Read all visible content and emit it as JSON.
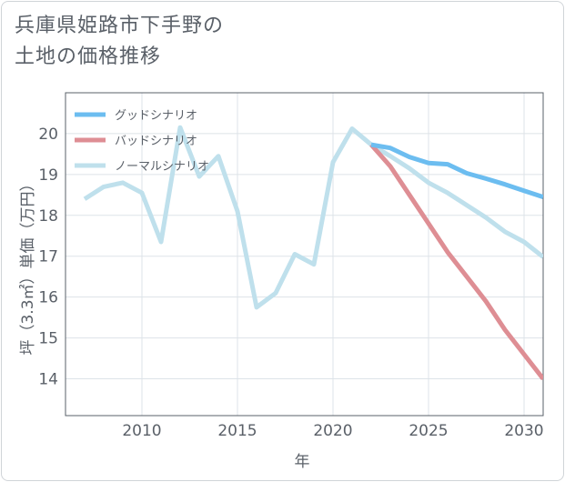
{
  "title": {
    "line1": "兵庫県姫路市下手野の",
    "line2": "土地の価格推移"
  },
  "chart_data": {
    "type": "line",
    "xlabel": "年",
    "ylabel": "坪（3.3㎡）単価（万円）",
    "xlim": [
      2006,
      2031
    ],
    "ylim": [
      13.1,
      21.0
    ],
    "x_ticks": [
      2010,
      2015,
      2020,
      2025,
      2030
    ],
    "y_ticks": [
      14,
      15,
      16,
      17,
      18,
      19,
      20
    ],
    "grid": true,
    "legend_position": "top-left",
    "series": [
      {
        "name": "グッドシナリオ",
        "color": "#6cbdf0",
        "x": [
          2022,
          2023,
          2024,
          2025,
          2026,
          2027,
          2028,
          2029,
          2030,
          2031
        ],
        "y": [
          19.73,
          19.65,
          19.43,
          19.28,
          19.25,
          19.03,
          18.9,
          18.76,
          18.6,
          18.45
        ]
      },
      {
        "name": "バッドシナリオ",
        "color": "#de8e94",
        "x": [
          2022,
          2023,
          2024,
          2025,
          2026,
          2027,
          2028,
          2029,
          2030,
          2031
        ],
        "y": [
          19.73,
          19.2,
          18.5,
          17.8,
          17.1,
          16.5,
          15.9,
          15.2,
          14.6,
          14.0
        ]
      },
      {
        "name": "ノーマルシナリオ",
        "color": "#bfe0ec",
        "x": [
          2007,
          2008,
          2009,
          2010,
          2011,
          2012,
          2013,
          2014,
          2015,
          2016,
          2017,
          2018,
          2019,
          2020,
          2021,
          2022,
          2023,
          2024,
          2025,
          2026,
          2027,
          2028,
          2029,
          2030,
          2031
        ],
        "y": [
          18.4,
          18.7,
          18.8,
          18.55,
          17.35,
          20.15,
          18.95,
          19.45,
          18.1,
          15.75,
          16.1,
          17.05,
          16.8,
          19.3,
          20.12,
          19.73,
          19.45,
          19.15,
          18.8,
          18.55,
          18.25,
          17.95,
          17.6,
          17.35,
          16.98
        ]
      }
    ]
  }
}
